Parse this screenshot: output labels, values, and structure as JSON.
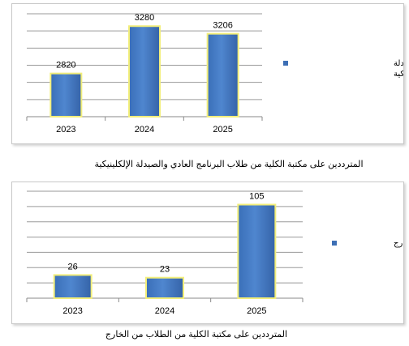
{
  "charts": [
    {
      "caption": "المترددين على مكتبة الكلية من طلاب البرنامج العادي والصيدلة الإلكلينيكية",
      "chart_data": {
        "type": "bar",
        "categories": [
          "2023",
          "2024",
          "2025"
        ],
        "series": [
          {
            "name": "طلاب البرنامج العادي و الصيدلة الإكلينيكية",
            "values": [
              2820,
              3280,
              3206
            ]
          }
        ],
        "data_labels": [
          "2820",
          "3280",
          "3206"
        ],
        "ylim": [
          2400,
          3400
        ],
        "gridlines": 6,
        "grid": true,
        "legend_position": "right",
        "bar_color": "#4f86cf",
        "bar_border": "#f2ee7a"
      }
    },
    {
      "caption": "المترددين على مكتبة الكلية من الطلاب من الخارج",
      "chart_data": {
        "type": "bar",
        "categories": [
          "2023",
          "2024",
          "2025"
        ],
        "series": [
          {
            "name": "طلاب من الخارج",
            "values": [
              26,
              23,
              105
            ]
          }
        ],
        "data_labels": [
          "26",
          "23",
          "105"
        ],
        "ylim": [
          0,
          120
        ],
        "gridlines": 7,
        "grid": true,
        "legend_position": "right",
        "bar_color": "#4f86cf",
        "bar_border": "#f2ee7a"
      }
    }
  ]
}
